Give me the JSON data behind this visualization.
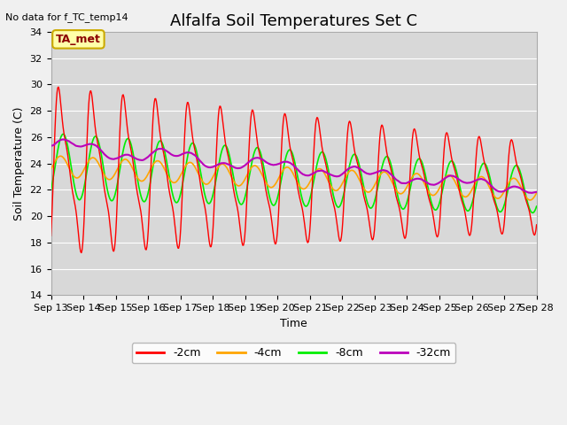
{
  "title": "Alfalfa Soil Temperatures Set C",
  "xlabel": "Time",
  "ylabel": "Soil Temperature (C)",
  "no_data_label": "No data for f_TC_temp14",
  "ta_met_label": "TA_met",
  "ylim": [
    14,
    34
  ],
  "yticks": [
    14,
    16,
    18,
    20,
    22,
    24,
    26,
    28,
    30,
    32,
    34
  ],
  "xtick_labels": [
    "Sep 13",
    "Sep 14",
    "Sep 15",
    "Sep 16",
    "Sep 17",
    "Sep 18",
    "Sep 19",
    "Sep 20",
    "Sep 21",
    "Sep 22",
    "Sep 23",
    "Sep 24",
    "Sep 25",
    "Sep 26",
    "Sep 27",
    "Sep 28"
  ],
  "colors": {
    "-2cm": "#ff0000",
    "-4cm": "#ffa500",
    "-8cm": "#00ee00",
    "-32cm": "#bb00bb"
  },
  "legend_labels": [
    "-2cm",
    "-4cm",
    "-8cm",
    "-32cm"
  ],
  "fig_bg_color": "#f0f0f0",
  "plot_bg_color": "#d8d8d8",
  "title_fontsize": 13,
  "axis_label_fontsize": 9,
  "tick_fontsize": 8,
  "n_days": 15,
  "points_per_day": 48
}
